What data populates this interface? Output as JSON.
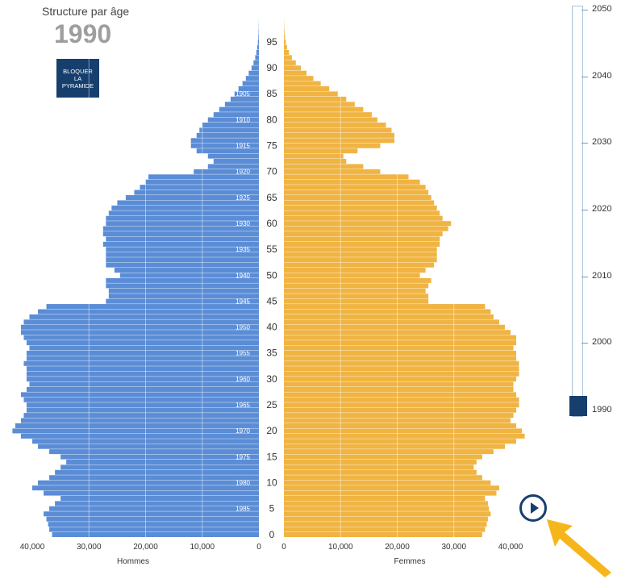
{
  "header": {
    "title": "Structure par âge",
    "year": "1990"
  },
  "lock_button": {
    "label_lines": [
      "BLOQUER",
      "LA",
      "PYRAMIDE"
    ]
  },
  "timeline": {
    "labels": [
      "2050",
      "2040",
      "2030",
      "2020",
      "2010",
      "2000",
      "1990"
    ],
    "selected": "1990"
  },
  "colors": {
    "men": "#5b8dd6",
    "men_dark": "#2d6cc4",
    "women": "#f0b443",
    "women_dark": "#e89e17",
    "accent": "#163f6e"
  },
  "chart_data": {
    "type": "bar",
    "title": "Structure par âge",
    "subtitle": "1990",
    "orientation": "horizontal-pyramid",
    "men_label": "Hommes",
    "women_label": "Femmes",
    "x_ticks_men": [
      "40,000",
      "30,000",
      "20,000",
      "10,000",
      "0"
    ],
    "x_ticks_women": [
      "0",
      "10,000",
      "20,000",
      "30,000",
      "40,000"
    ],
    "xlim": [
      0,
      43000
    ],
    "age_labels": [
      "0",
      "5",
      "10",
      "15",
      "20",
      "25",
      "30",
      "35",
      "40",
      "45",
      "50",
      "55",
      "60",
      "65",
      "70",
      "75",
      "80",
      "85",
      "90",
      "95"
    ],
    "birth_year_labels": [
      "1985",
      "1980",
      "1975",
      "1970",
      "1965",
      "1960",
      "1955",
      "1950",
      "1945",
      "1940",
      "1935",
      "1930",
      "1925",
      "1920",
      "1915",
      "1910",
      "1905"
    ],
    "ages": [
      0,
      1,
      2,
      3,
      4,
      5,
      6,
      7,
      8,
      9,
      10,
      11,
      12,
      13,
      14,
      15,
      16,
      17,
      18,
      19,
      20,
      21,
      22,
      23,
      24,
      25,
      26,
      27,
      28,
      29,
      30,
      31,
      32,
      33,
      34,
      35,
      36,
      37,
      38,
      39,
      40,
      41,
      42,
      43,
      44,
      45,
      46,
      47,
      48,
      49,
      50,
      51,
      52,
      53,
      54,
      55,
      56,
      57,
      58,
      59,
      60,
      61,
      62,
      63,
      64,
      65,
      66,
      67,
      68,
      69,
      70,
      71,
      72,
      73,
      74,
      75,
      76,
      77,
      78,
      79,
      80,
      81,
      82,
      83,
      84,
      85,
      86,
      87,
      88,
      89,
      90,
      91,
      92,
      93,
      94,
      95,
      96,
      97,
      98,
      99
    ],
    "men": [
      36500,
      37000,
      37200,
      37500,
      38000,
      37000,
      36000,
      35000,
      38000,
      40000,
      39000,
      37000,
      36000,
      35000,
      34000,
      35000,
      37000,
      39000,
      40000,
      42000,
      43500,
      43000,
      42000,
      41500,
      41000,
      41000,
      41500,
      42000,
      41000,
      40500,
      41000,
      41000,
      41000,
      41500,
      41000,
      41000,
      40500,
      41000,
      41500,
      42000,
      42000,
      41500,
      40500,
      39000,
      37500,
      27000,
      26500,
      26500,
      27000,
      27000,
      24500,
      25500,
      27000,
      27000,
      27000,
      27000,
      27500,
      27000,
      27500,
      27500,
      27000,
      27000,
      26500,
      26000,
      25000,
      23500,
      22000,
      21000,
      20000,
      19500,
      11500,
      9000,
      8000,
      9000,
      11000,
      12000,
      12000,
      11000,
      10500,
      10000,
      9000,
      8000,
      7000,
      6000,
      5000,
      4300,
      3600,
      2900,
      2300,
      1800,
      1300,
      950,
      650,
      450,
      300,
      180,
      100,
      60,
      30,
      15
    ],
    "men_aged": [
      0,
      0,
      0,
      0,
      0,
      0,
      0,
      0,
      0,
      0,
      0,
      0,
      0,
      0,
      0,
      0,
      0,
      0,
      0,
      0,
      0,
      0,
      0,
      0,
      0,
      0,
      0,
      0,
      0,
      0,
      0,
      0,
      0,
      0,
      0,
      0,
      0,
      0,
      0,
      0,
      0,
      0,
      0,
      0,
      0,
      0,
      0,
      0,
      0,
      0,
      0,
      0,
      0,
      0,
      0,
      0,
      0,
      0,
      0,
      0,
      0,
      0,
      0,
      0,
      0,
      0,
      0,
      0,
      0,
      0,
      0,
      0,
      0,
      0,
      0,
      0,
      0,
      0,
      0,
      0,
      0,
      0,
      0,
      0,
      0,
      0,
      0,
      0,
      0,
      0,
      0,
      0,
      0,
      0,
      0,
      0,
      0,
      0,
      0,
      0
    ],
    "women": [
      35000,
      35500,
      35800,
      36000,
      36500,
      36200,
      36000,
      35500,
      37500,
      38000,
      36500,
      35000,
      34000,
      33500,
      34000,
      35000,
      37000,
      39000,
      41000,
      42500,
      42000,
      41000,
      40000,
      40500,
      41000,
      41500,
      41500,
      41000,
      40500,
      40500,
      41000,
      41500,
      41500,
      41500,
      41000,
      41000,
      40500,
      41000,
      41000,
      40000,
      39000,
      38000,
      37000,
      36500,
      35500,
      25500,
      25500,
      25000,
      25500,
      26000,
      24000,
      25000,
      26500,
      27000,
      27000,
      27000,
      27500,
      27500,
      28000,
      29000,
      29500,
      28000,
      27500,
      27000,
      26500,
      26000,
      25500,
      25000,
      24000,
      22000,
      17000,
      14000,
      11000,
      10500,
      13000,
      17000,
      19500,
      19500,
      19000,
      18000,
      16500,
      15500,
      14000,
      12500,
      11000,
      9500,
      8000,
      6500,
      5200,
      4000,
      3000,
      2100,
      1400,
      900,
      550,
      330,
      180,
      100,
      50,
      25
    ],
    "women_aged": [
      0,
      0,
      0,
      0,
      0,
      0,
      0,
      0,
      0,
      0,
      0,
      0,
      0,
      0,
      0,
      0,
      0,
      0,
      0,
      0,
      0,
      0,
      0,
      0,
      0,
      0,
      0,
      0,
      0,
      0,
      0,
      0,
      0,
      0,
      0,
      0,
      0,
      0,
      0,
      0,
      0,
      0,
      0,
      0,
      0,
      0,
      0,
      0,
      0,
      0,
      0,
      0,
      0,
      0,
      0,
      0,
      0,
      0,
      0,
      0,
      0,
      0,
      0,
      0,
      0,
      0,
      0,
      0,
      0,
      0,
      0,
      0,
      0,
      0,
      0,
      0,
      0,
      0,
      0,
      0,
      0,
      0,
      0,
      0,
      0,
      0,
      0,
      0,
      0,
      0,
      0,
      0,
      0,
      0,
      0,
      0,
      0,
      0,
      0,
      0
    ]
  }
}
